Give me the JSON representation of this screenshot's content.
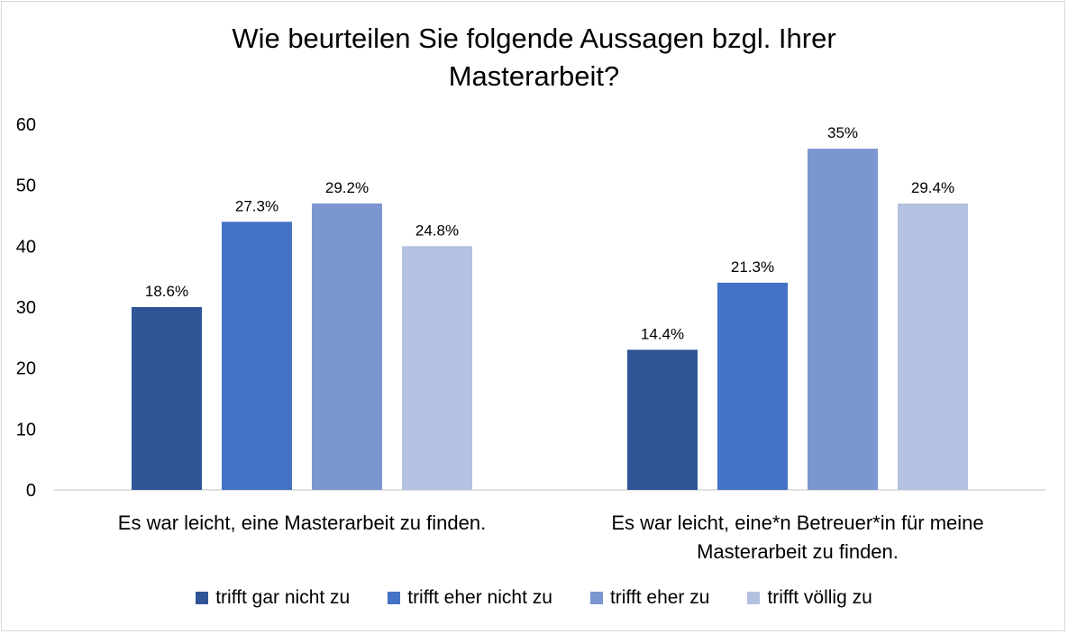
{
  "chart_data": {
    "type": "bar",
    "title_lines": [
      "Wie beurteilen Sie folgende Aussagen bzgl. Ihrer",
      "Masterarbeit?"
    ],
    "categories": [
      [
        "Es war leicht, eine Masterarbeit zu finden."
      ],
      [
        "Es war leicht, eine*n Betreuer*in für meine",
        "Masterarbeit zu finden."
      ]
    ],
    "series": [
      {
        "name": "trifft gar nicht zu",
        "color": "#2f5597",
        "values": [
          30,
          23
        ],
        "labels": [
          "18.6%",
          "14.4%"
        ]
      },
      {
        "name": "trifft eher nicht zu",
        "color": "#4472c4",
        "values": [
          44,
          34
        ],
        "labels": [
          "27.3%",
          "21.3%"
        ]
      },
      {
        "name": "trifft eher zu",
        "color": "#7b96d1",
        "values": [
          47,
          56
        ],
        "labels": [
          "29.2%",
          "35%"
        ]
      },
      {
        "name": "trifft völlig zu",
        "color": "#b4c1e1",
        "values": [
          40,
          47
        ],
        "labels": [
          "24.8%",
          "29.4%"
        ]
      }
    ],
    "yticks": [
      "0",
      "10",
      "20",
      "30",
      "40",
      "50",
      "60"
    ],
    "ylim": [
      0,
      60
    ],
    "grid": false,
    "legend_position": "bottom"
  }
}
